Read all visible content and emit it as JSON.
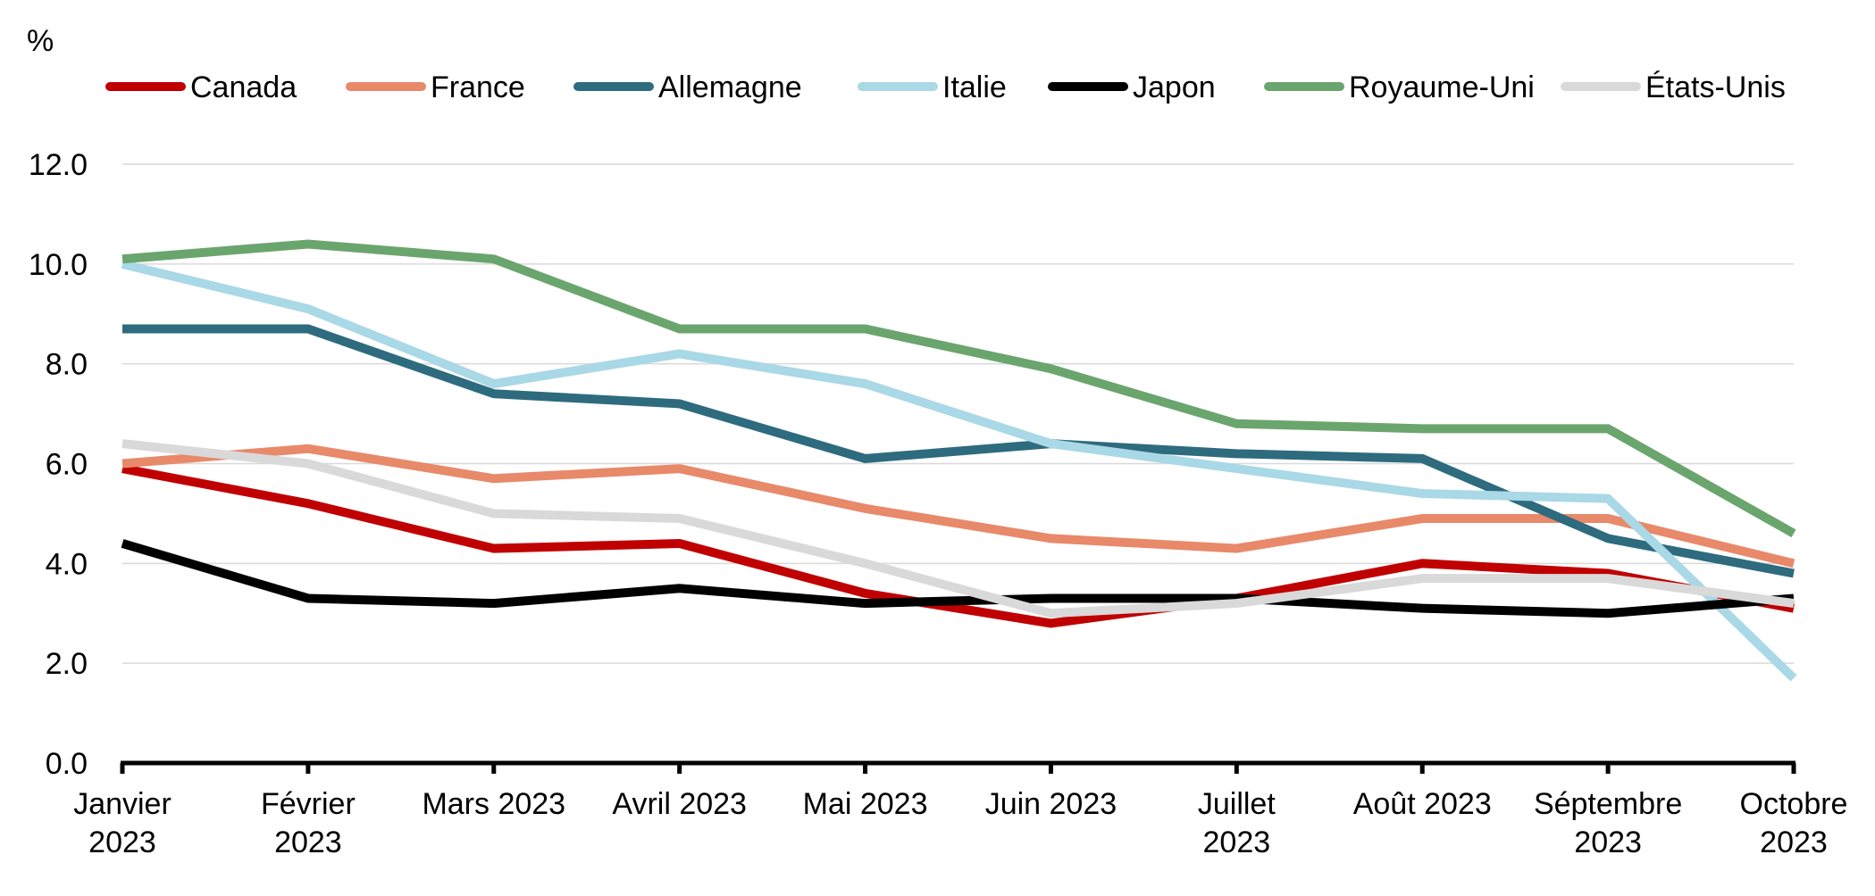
{
  "chart_data": {
    "type": "line",
    "ylabel": "%",
    "ylim": [
      0,
      12
    ],
    "ytick_values": [
      0,
      2,
      4,
      6,
      8,
      10,
      12
    ],
    "ytick_labels": [
      "0.0",
      "2.0",
      "4.0",
      "6.0",
      "8.0",
      "10.0",
      "12.0"
    ],
    "categories": [
      [
        "Janvier",
        "2023"
      ],
      [
        "Février",
        "2023"
      ],
      [
        "Mars 2023"
      ],
      [
        "Avril 2023"
      ],
      [
        "Mai 2023"
      ],
      [
        "Juin 2023"
      ],
      [
        "Juillet",
        "2023"
      ],
      [
        "Août 2023"
      ],
      [
        "Séptembre",
        "2023"
      ],
      [
        "Octobre",
        "2023"
      ]
    ],
    "grid": true,
    "legend_position": "top",
    "series": [
      {
        "name": "Canada",
        "color": "#c00000",
        "values": [
          5.9,
          5.2,
          4.3,
          4.4,
          3.4,
          2.8,
          3.3,
          4.0,
          3.8,
          3.1
        ]
      },
      {
        "name": "France",
        "color": "#e8896a",
        "values": [
          6.0,
          6.3,
          5.7,
          5.9,
          5.1,
          4.5,
          4.3,
          4.9,
          4.9,
          4.0
        ]
      },
      {
        "name": "Allemagne",
        "color": "#2e6b7e",
        "values": [
          8.7,
          8.7,
          7.4,
          7.2,
          6.1,
          6.4,
          6.2,
          6.1,
          4.5,
          3.8
        ]
      },
      {
        "name": "Italie",
        "color": "#a9d8e6",
        "values": [
          10.0,
          9.1,
          7.6,
          8.2,
          7.6,
          6.4,
          5.9,
          5.4,
          5.3,
          1.7
        ]
      },
      {
        "name": "Japon",
        "color": "#000000",
        "values": [
          4.4,
          3.3,
          3.2,
          3.5,
          3.2,
          3.3,
          3.3,
          3.1,
          3.0,
          3.3
        ]
      },
      {
        "name": "Royaume-Uni",
        "color": "#6aa56e",
        "values": [
          10.1,
          10.4,
          10.1,
          8.7,
          8.7,
          7.9,
          6.8,
          6.7,
          6.7,
          4.6
        ]
      },
      {
        "name": "États-Unis",
        "color": "#d9d9d9",
        "values": [
          6.4,
          6.0,
          5.0,
          4.9,
          4.0,
          3.0,
          3.2,
          3.7,
          3.7,
          3.2
        ]
      }
    ]
  }
}
